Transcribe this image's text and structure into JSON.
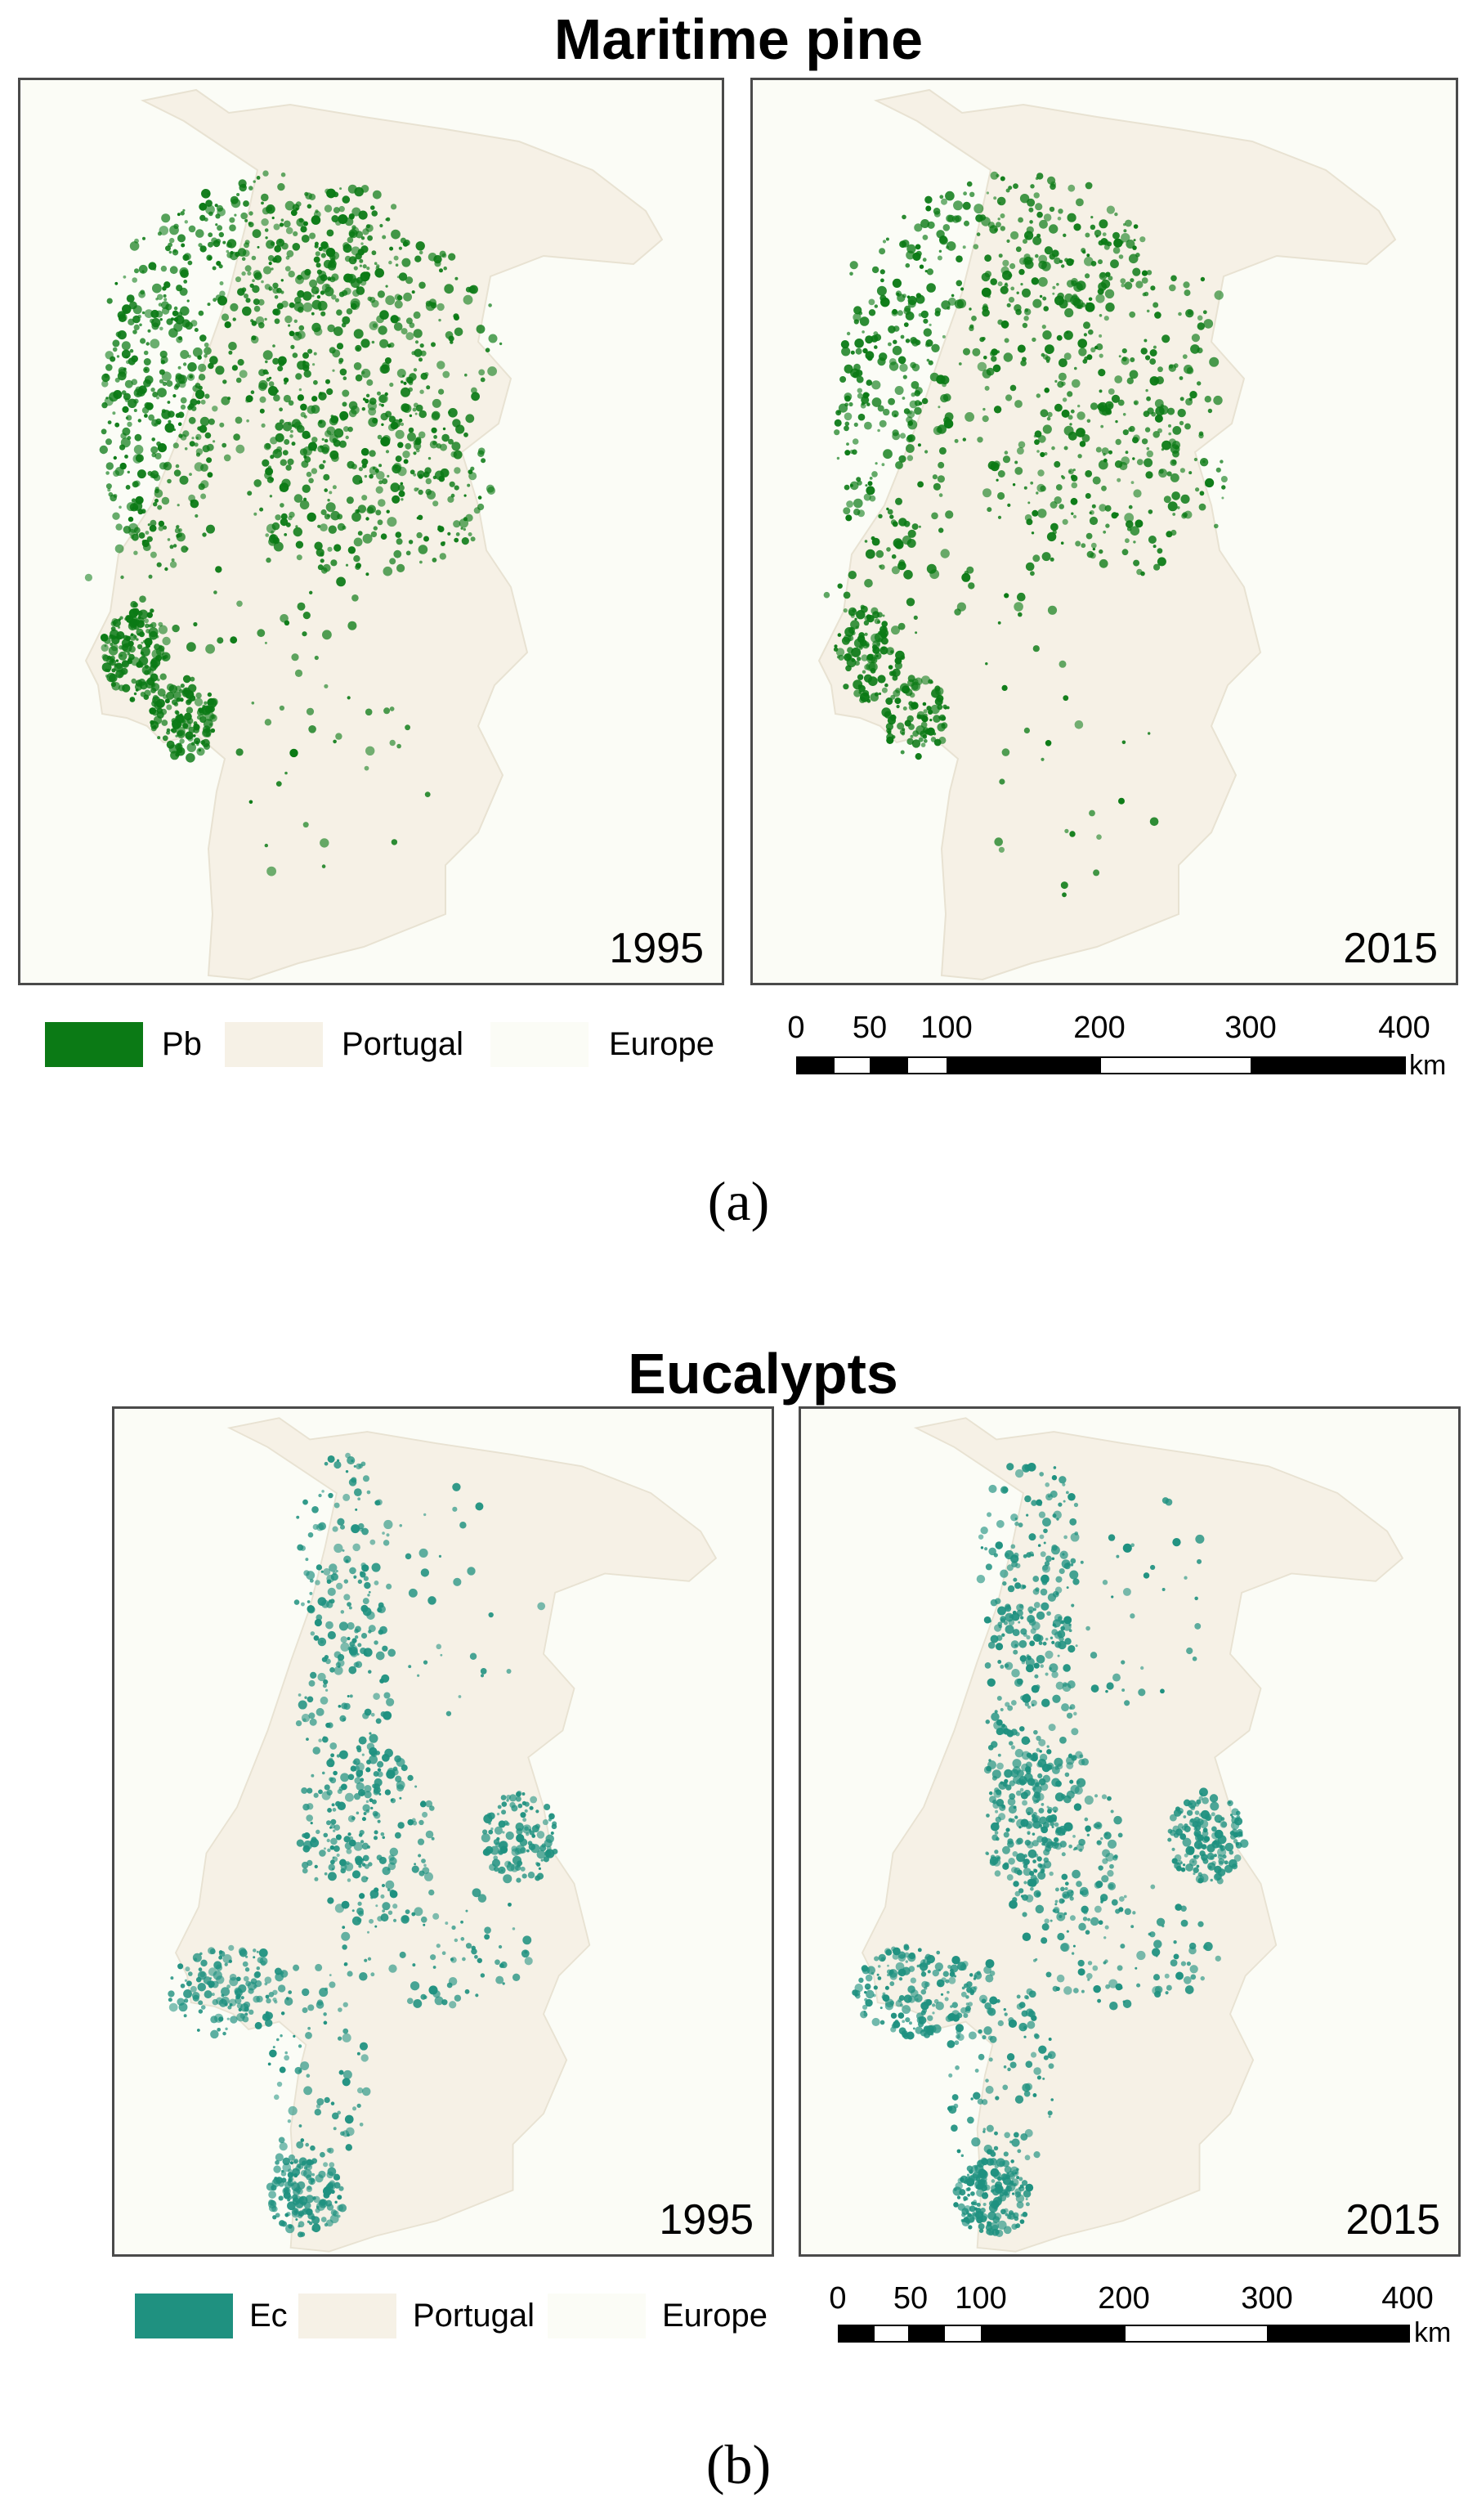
{
  "colors": {
    "maritime_pine": "#0b7a15",
    "eucalypts": "#1f9180",
    "portugal": "#f6f1e6",
    "europe": "#fbfcf6",
    "frame": "#4a4a4a"
  },
  "panels": [
    {
      "title": "Maritime pine",
      "caption": "(a)",
      "species_color_key": "maritime_pine",
      "maps": [
        {
          "year": "1995"
        },
        {
          "year": "2015"
        }
      ],
      "legend": [
        {
          "label": "Pb",
          "color": "#0b7a15"
        },
        {
          "label": "Portugal",
          "color": "#f6f1e6"
        },
        {
          "label": "Europe",
          "color": "#fbfcf6"
        }
      ],
      "scale_bar": {
        "ticks": [
          "0",
          "50",
          "100",
          "200",
          "300",
          "400"
        ],
        "unit": "km"
      }
    },
    {
      "title": "Eucalypts",
      "caption": "(b)",
      "species_color_key": "eucalypts",
      "maps": [
        {
          "year": "1995"
        },
        {
          "year": "2015"
        }
      ],
      "legend": [
        {
          "label": "Ec",
          "color": "#1f9180"
        },
        {
          "label": "Portugal",
          "color": "#f6f1e6"
        },
        {
          "label": "Europe",
          "color": "#fbfcf6"
        }
      ],
      "scale_bar": {
        "ticks": [
          "0",
          "50",
          "100",
          "200",
          "300",
          "400"
        ],
        "unit": "km"
      }
    }
  ]
}
